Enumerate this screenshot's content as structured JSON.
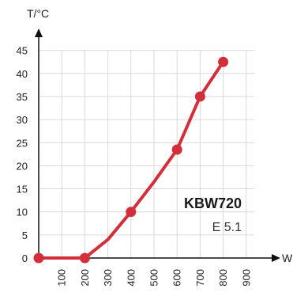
{
  "chart_data": {
    "type": "line",
    "ylabel": "T/°C",
    "xlabel": "W",
    "x_ticks": [
      100,
      200,
      300,
      400,
      500,
      600,
      700,
      800,
      900
    ],
    "y_ticks": [
      0,
      5,
      10,
      15,
      20,
      25,
      30,
      35,
      40,
      45
    ],
    "xlim": [
      0,
      900
    ],
    "ylim": [
      0,
      45
    ],
    "grid": true,
    "series": [
      {
        "name": "KBW720",
        "color": "#d32f3a",
        "curve": [
          {
            "x": 0,
            "y": 0
          },
          {
            "x": 200,
            "y": 0
          },
          {
            "x": 300,
            "y": 4
          },
          {
            "x": 400,
            "y": 10
          },
          {
            "x": 500,
            "y": 16.5
          },
          {
            "x": 600,
            "y": 23.5
          },
          {
            "x": 700,
            "y": 35
          },
          {
            "x": 800,
            "y": 42.5
          }
        ],
        "markers": [
          {
            "x": 0,
            "y": 0
          },
          {
            "x": 200,
            "y": 0
          },
          {
            "x": 400,
            "y": 10
          },
          {
            "x": 600,
            "y": 23.5
          },
          {
            "x": 700,
            "y": 35
          },
          {
            "x": 800,
            "y": 42.5
          }
        ]
      }
    ],
    "annotations": {
      "model": "KBW720",
      "code": "E 5.1"
    }
  }
}
